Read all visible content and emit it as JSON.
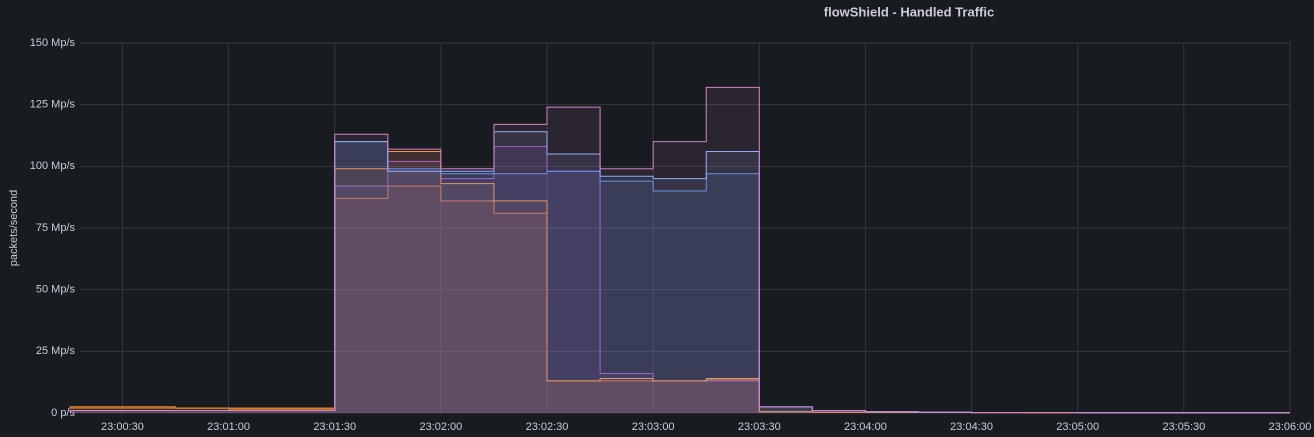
{
  "chart_data": {
    "type": "step-area",
    "title": "flowShield - Handled Traffic",
    "y_label": "packets/second",
    "x": [
      "23:00:15",
      "23:00:30",
      "23:00:45",
      "23:01:00",
      "23:01:15",
      "23:01:30",
      "23:01:45",
      "23:02:00",
      "23:02:15",
      "23:02:30",
      "23:02:45",
      "23:03:00",
      "23:03:15",
      "23:03:30",
      "23:03:45",
      "23:04:00",
      "23:04:15",
      "23:04:30",
      "23:04:45",
      "23:05:00",
      "23:05:15",
      "23:05:30",
      "23:05:45",
      "23:06:00"
    ],
    "series": [
      {
        "color": "#e0752d",
        "values": [
          2,
          2,
          2,
          1.5,
          1.5,
          87,
          92,
          86,
          81,
          13,
          13,
          13,
          13.5,
          0.5,
          0.3,
          0.2,
          0.2,
          0.2,
          0.1,
          0.1,
          0.1,
          0.1,
          0.1,
          0.1
        ]
      },
      {
        "color": "#a352cc",
        "values": [
          1,
          1,
          1,
          1,
          1,
          92,
          102,
          95,
          108,
          98,
          16,
          13,
          13,
          0.5,
          0.3,
          0.2,
          0.2,
          0.1,
          0.1,
          0.1,
          0.1,
          0.1,
          0.1,
          0.1
        ]
      },
      {
        "color": "#ff9830",
        "values": [
          2.5,
          2.5,
          2,
          2,
          2,
          99,
          106,
          93,
          86,
          13,
          14,
          13,
          14,
          0.5,
          0.3,
          0.2,
          0.2,
          0.1,
          0.1,
          0.1,
          0.1,
          0.1,
          0.1,
          0.1
        ]
      },
      {
        "color": "#5794f2",
        "values": [
          1,
          1,
          1,
          1,
          1,
          110,
          99,
          97,
          97,
          98,
          94,
          90,
          97,
          2.5,
          1,
          0.5,
          0.3,
          0.2,
          0.2,
          0.1,
          0.1,
          0.1,
          0.1,
          0.1
        ]
      },
      {
        "color": "#8ab8ff",
        "values": [
          1,
          1,
          1,
          1,
          1,
          110,
          98,
          98,
          114,
          105,
          96,
          95,
          106,
          2.5,
          1,
          0.5,
          0.3,
          0.2,
          0.2,
          0.1,
          0.1,
          0.1,
          0.1,
          0.1
        ]
      },
      {
        "color": "#d683ce",
        "values": [
          1,
          1,
          1,
          1,
          1,
          113,
          107,
          99,
          117,
          124,
          99,
          110,
          132,
          2.5,
          1,
          0.5,
          0.3,
          0.2,
          0.2,
          0.1,
          0.1,
          0.1,
          0.1,
          0.1
        ]
      }
    ],
    "xlim": [
      "23:00:18",
      "23:06:00"
    ],
    "xticks": [
      "23:00:30",
      "23:01:00",
      "23:01:30",
      "23:02:00",
      "23:02:30",
      "23:03:00",
      "23:03:30",
      "23:04:00",
      "23:04:30",
      "23:05:00",
      "23:05:30",
      "23:06:00"
    ],
    "ylim": [
      0,
      150
    ],
    "yticks": [
      {
        "value": 0,
        "label": "0 p/s"
      },
      {
        "value": 25,
        "label": "25 Mp/s"
      },
      {
        "value": 50,
        "label": "50 Mp/s"
      },
      {
        "value": 75,
        "label": "75 Mp/s"
      },
      {
        "value": 100,
        "label": "100 Mp/s"
      },
      {
        "value": 125,
        "label": "125 Mp/s"
      },
      {
        "value": 150,
        "label": "150 Mp/s"
      }
    ],
    "grid": true
  }
}
